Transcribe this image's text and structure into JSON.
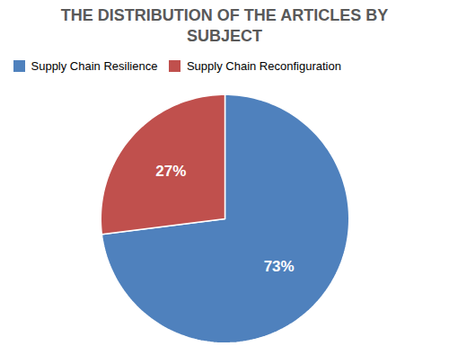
{
  "chart_data": {
    "type": "pie",
    "title": "THE DISTRIBUTION OF THE ARTICLES BY\nSUBJECT",
    "categories": [
      "Supply Chain Resilience",
      "Supply Chain Reconfiguration"
    ],
    "values": [
      73,
      27
    ],
    "value_labels": [
      "73%",
      "27%"
    ],
    "colors": [
      "#4F81BD",
      "#C0504D"
    ],
    "data_labels": true,
    "legend": "top-left"
  }
}
